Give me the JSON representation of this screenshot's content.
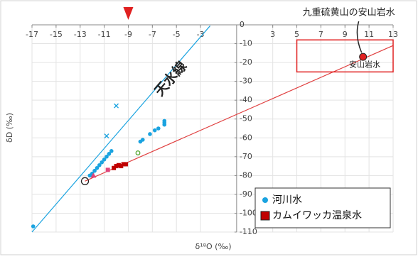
{
  "chart_data": {
    "type": "scatter",
    "x_label": "δ¹⁸O (‰)",
    "y_label": "δD (‰)",
    "xlim": [
      -17,
      13
    ],
    "ylim": [
      -110,
      0
    ],
    "xticks": [
      -17,
      -15,
      -13,
      -11,
      -9,
      -7,
      -5,
      -3,
      3,
      5,
      7,
      9,
      11,
      13
    ],
    "yticks": [
      0,
      -10,
      -20,
      -30,
      -40,
      -50,
      -60,
      -70,
      -80,
      -90,
      -100,
      -110
    ],
    "grid": true,
    "legend": "lower right",
    "series": [
      {
        "name": "河川水",
        "color": "#1aa3e0",
        "marker": "circle",
        "x": [
          -16.9,
          -12.2,
          -12,
          -11.8,
          -11.6,
          -11.4,
          -11.2,
          -11,
          -10.8,
          -10.6,
          -10.4,
          -8,
          -7.8,
          -7.2,
          -6.8,
          -6.5,
          -6,
          -6,
          -6
        ],
        "values": [
          -107,
          -80,
          -79,
          -77.5,
          -76,
          -74.5,
          -73,
          -71.5,
          -70,
          -68.5,
          -67,
          -62,
          -61,
          -58,
          -56,
          -55,
          -53,
          -52,
          -51
        ]
      },
      {
        "name": "カムイワッカ温泉水",
        "color": "#c00000",
        "marker": "square",
        "x": [
          -10.2,
          -10,
          -9.8,
          -9.6,
          -9.4,
          -9.2
        ],
        "values": [
          -76,
          -75,
          -74.5,
          -75,
          -74,
          -74
        ]
      },
      {
        "color": "#1aa3e0",
        "marker": "x",
        "x": [
          -10,
          -10.8
        ],
        "values": [
          -43,
          -59
        ]
      },
      {
        "color": "#222222",
        "marker": "open-circle",
        "x": [
          -12.6
        ],
        "values": [
          -83
        ]
      },
      {
        "color": "#55a630",
        "marker": "open-circle",
        "x": [
          -8.2
        ],
        "values": [
          -68
        ]
      },
      {
        "color": "#e0457b",
        "marker": "triangle",
        "x": [
          -11.9
        ],
        "values": [
          -80
        ]
      },
      {
        "color": "#e0457b",
        "marker": "square",
        "x": [
          -10.7
        ],
        "values": [
          -77
        ]
      }
    ],
    "lines": [
      {
        "label": "天水線",
        "color": "#1aa3e0",
        "x": [
          -17,
          -2.2
        ],
        "values": [
          -110,
          -0.5
        ]
      },
      {
        "color": "#e04040",
        "x": [
          -12.6,
          13
        ],
        "values": [
          -83,
          -11
        ]
      }
    ],
    "region": {
      "label": "安山岩水",
      "color": "#e02020",
      "xlim": [
        5,
        13
      ],
      "ylim": [
        -25,
        -8
      ]
    },
    "annotation": {
      "text": "九重硫黄山の安山岩水",
      "x": 10.5,
      "y": -17,
      "color": "#e02020"
    },
    "arrow_x": -9
  }
}
